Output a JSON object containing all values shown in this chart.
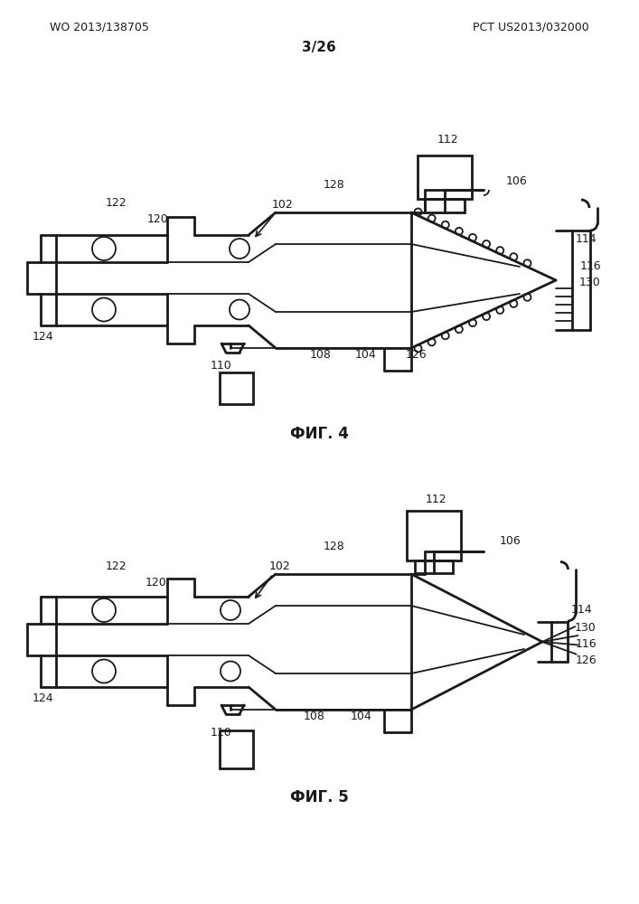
{
  "bg_color": "#ffffff",
  "line_color": "#1a1a1a",
  "text_color": "#1a1a1a",
  "header_left": "WO 2013/138705",
  "header_right": "PCT US2013/032000",
  "page_label": "3/26",
  "fig4_label": "ФИГ. 4",
  "fig5_label": "ФИГ. 5",
  "lw": 1.3,
  "lw_thick": 2.0
}
